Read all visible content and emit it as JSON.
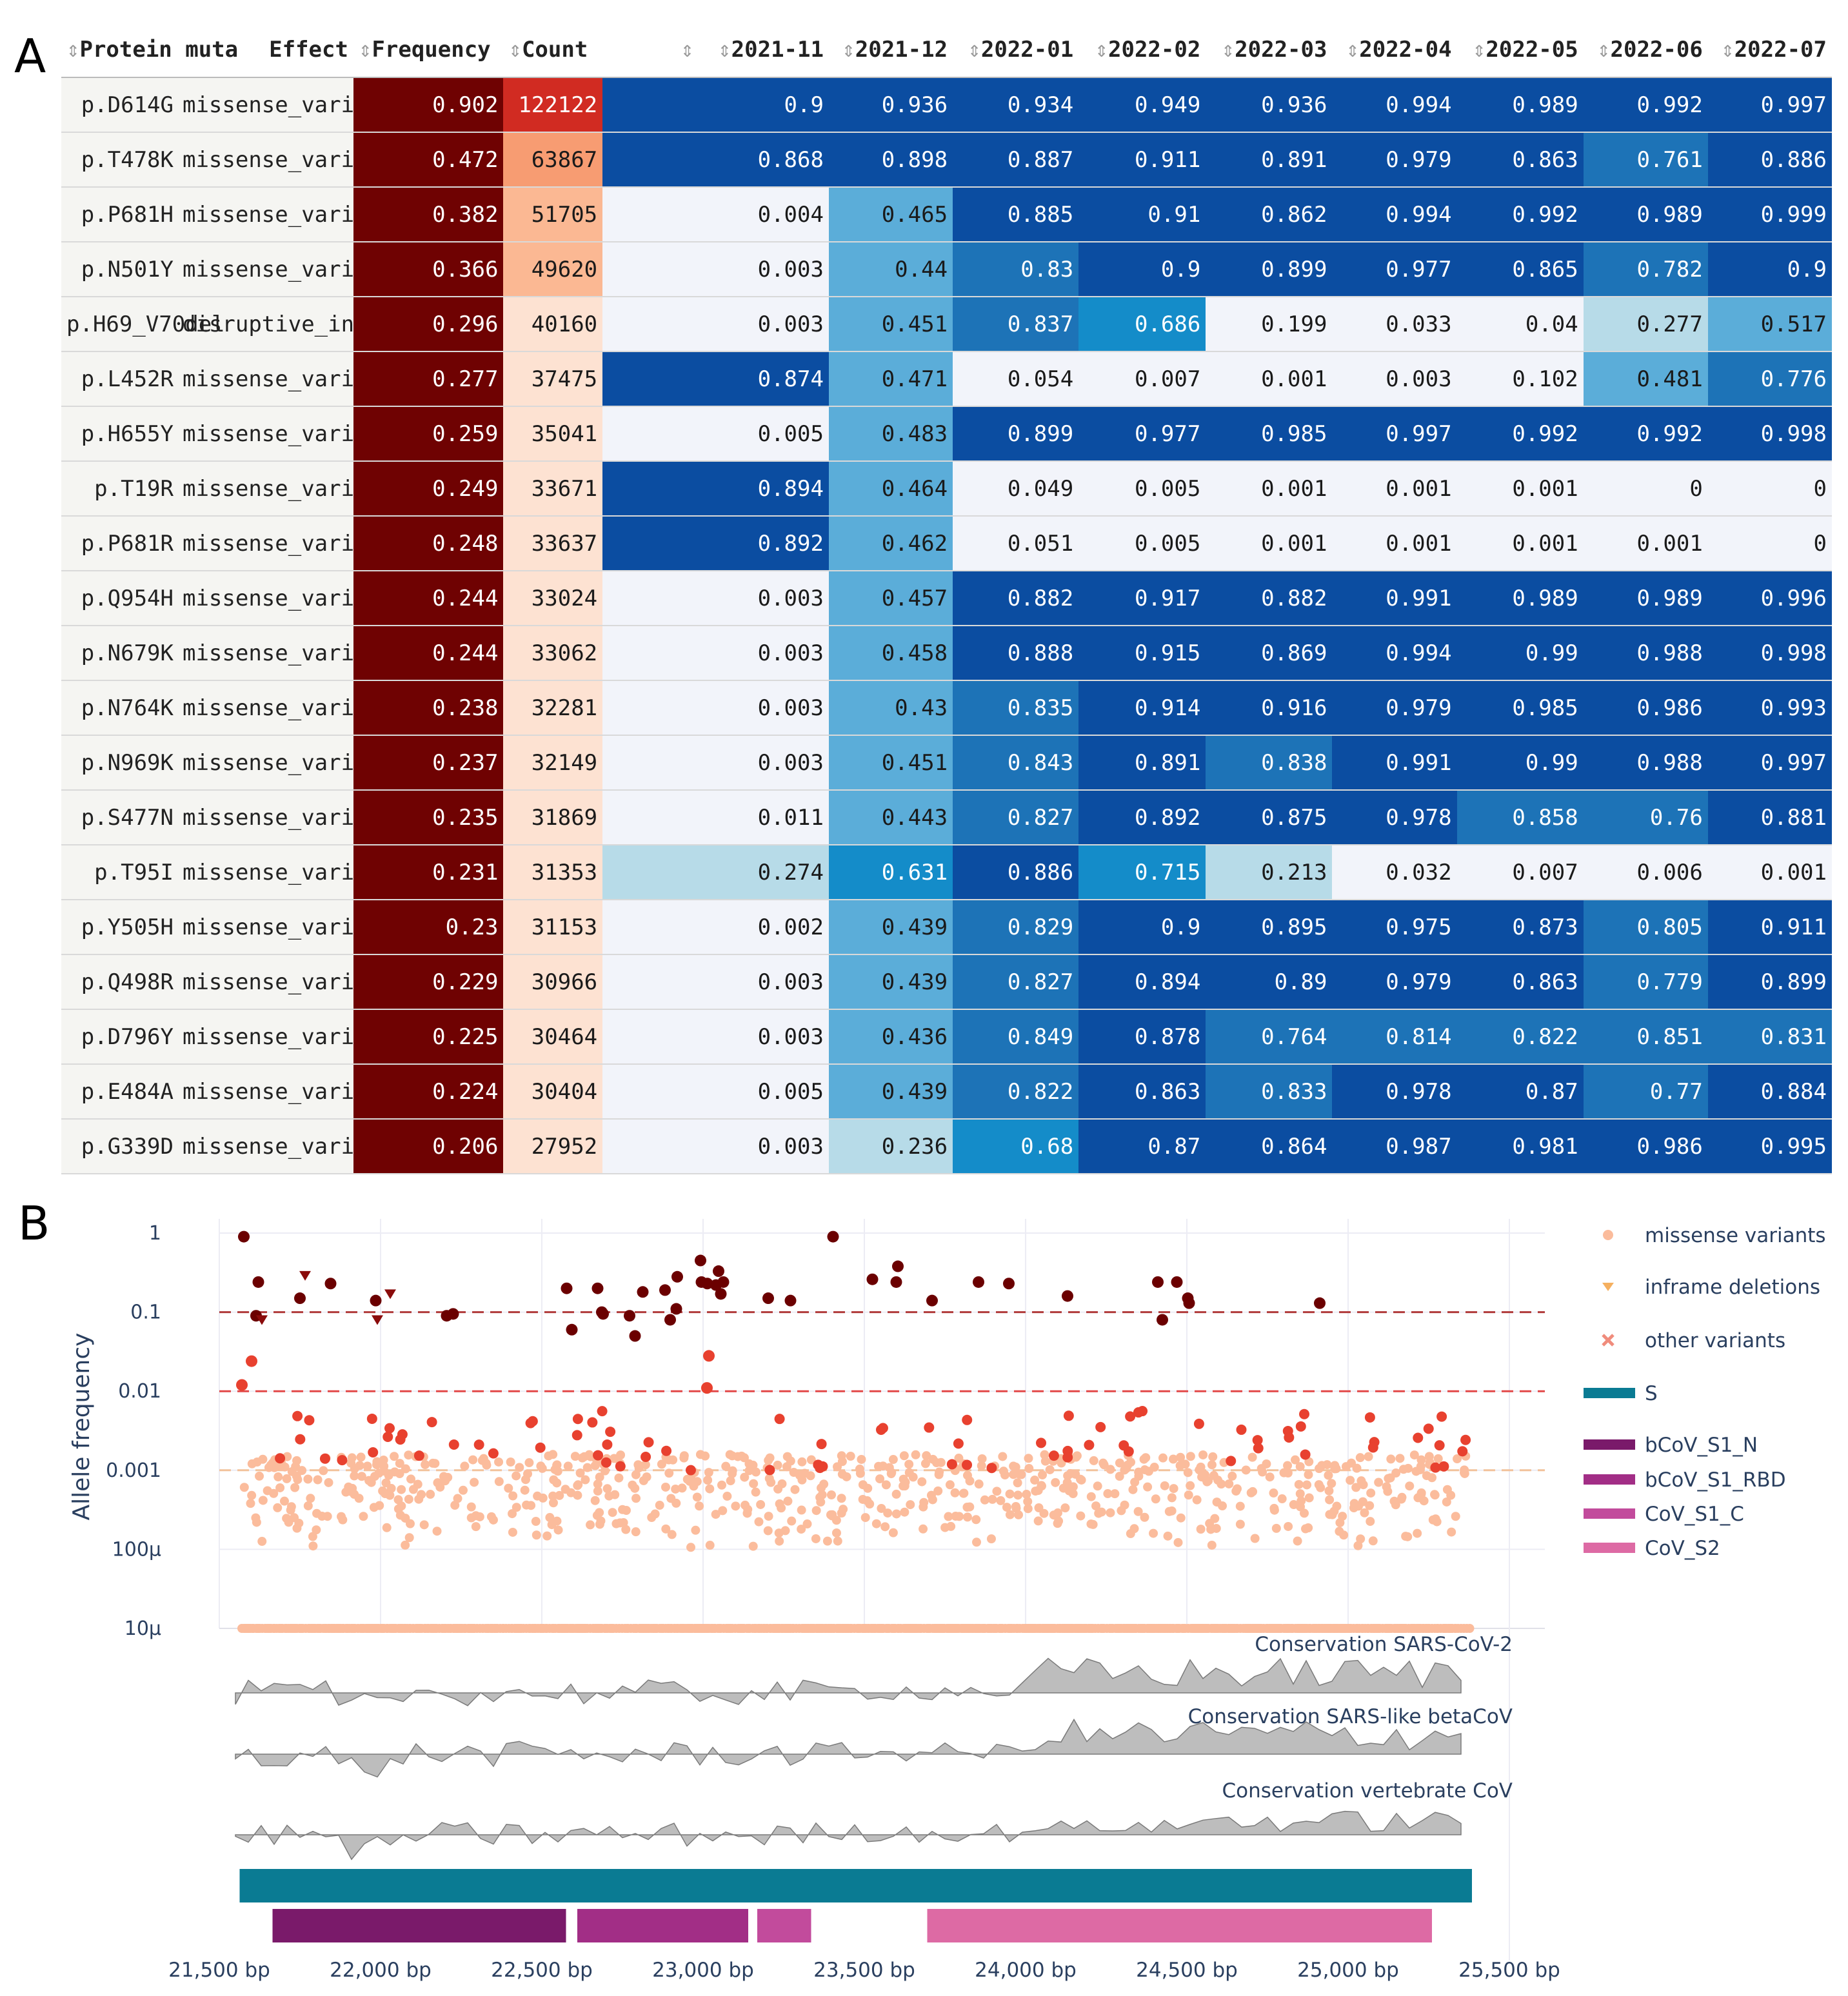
{
  "panel_a": {
    "letter": "A",
    "sort_icon": "⇕",
    "columns": [
      "Protein muta",
      "Effect",
      "Frequency",
      "Count",
      "",
      "2021-11",
      "2021-12",
      "2022-01",
      "2022-02",
      "2022-03",
      "2022-04",
      "2022-05",
      "2022-06",
      "2022-07"
    ],
    "rows": [
      {
        "mutation": "p.D614G",
        "effect": "missense_vari",
        "frequency": "0.902",
        "count": "122122",
        "months": [
          "0.9",
          "0.936",
          "0.934",
          "0.949",
          "0.936",
          "0.994",
          "0.989",
          "0.992",
          "0.997"
        ]
      },
      {
        "mutation": "p.T478K",
        "effect": "missense_vari",
        "frequency": "0.472",
        "count": "63867",
        "months": [
          "0.868",
          "0.898",
          "0.887",
          "0.911",
          "0.891",
          "0.979",
          "0.863",
          "0.761",
          "0.886"
        ]
      },
      {
        "mutation": "p.P681H",
        "effect": "missense_vari",
        "frequency": "0.382",
        "count": "51705",
        "months": [
          "0.004",
          "0.465",
          "0.885",
          "0.91",
          "0.862",
          "0.994",
          "0.992",
          "0.989",
          "0.999"
        ]
      },
      {
        "mutation": "p.N501Y",
        "effect": "missense_vari",
        "frequency": "0.366",
        "count": "49620",
        "months": [
          "0.003",
          "0.44",
          "0.83",
          "0.9",
          "0.899",
          "0.977",
          "0.865",
          "0.782",
          "0.9"
        ]
      },
      {
        "mutation": "p.H69_V70del",
        "effect": "disruptive_in",
        "frequency": "0.296",
        "count": "40160",
        "months": [
          "0.003",
          "0.451",
          "0.837",
          "0.686",
          "0.199",
          "0.033",
          "0.04",
          "0.277",
          "0.517"
        ]
      },
      {
        "mutation": "p.L452R",
        "effect": "missense_vari",
        "frequency": "0.277",
        "count": "37475",
        "months": [
          "0.874",
          "0.471",
          "0.054",
          "0.007",
          "0.001",
          "0.003",
          "0.102",
          "0.481",
          "0.776"
        ]
      },
      {
        "mutation": "p.H655Y",
        "effect": "missense_vari",
        "frequency": "0.259",
        "count": "35041",
        "months": [
          "0.005",
          "0.483",
          "0.899",
          "0.977",
          "0.985",
          "0.997",
          "0.992",
          "0.992",
          "0.998"
        ]
      },
      {
        "mutation": "p.T19R",
        "effect": "missense_vari",
        "frequency": "0.249",
        "count": "33671",
        "months": [
          "0.894",
          "0.464",
          "0.049",
          "0.005",
          "0.001",
          "0.001",
          "0.001",
          "0",
          "0"
        ]
      },
      {
        "mutation": "p.P681R",
        "effect": "missense_vari",
        "frequency": "0.248",
        "count": "33637",
        "months": [
          "0.892",
          "0.462",
          "0.051",
          "0.005",
          "0.001",
          "0.001",
          "0.001",
          "0.001",
          "0"
        ]
      },
      {
        "mutation": "p.Q954H",
        "effect": "missense_vari",
        "frequency": "0.244",
        "count": "33024",
        "months": [
          "0.003",
          "0.457",
          "0.882",
          "0.917",
          "0.882",
          "0.991",
          "0.989",
          "0.989",
          "0.996"
        ]
      },
      {
        "mutation": "p.N679K",
        "effect": "missense_vari",
        "frequency": "0.244",
        "count": "33062",
        "months": [
          "0.003",
          "0.458",
          "0.888",
          "0.915",
          "0.869",
          "0.994",
          "0.99",
          "0.988",
          "0.998"
        ]
      },
      {
        "mutation": "p.N764K",
        "effect": "missense_vari",
        "frequency": "0.238",
        "count": "32281",
        "months": [
          "0.003",
          "0.43",
          "0.835",
          "0.914",
          "0.916",
          "0.979",
          "0.985",
          "0.986",
          "0.993"
        ]
      },
      {
        "mutation": "p.N969K",
        "effect": "missense_vari",
        "frequency": "0.237",
        "count": "32149",
        "months": [
          "0.003",
          "0.451",
          "0.843",
          "0.891",
          "0.838",
          "0.991",
          "0.99",
          "0.988",
          "0.997"
        ]
      },
      {
        "mutation": "p.S477N",
        "effect": "missense_vari",
        "frequency": "0.235",
        "count": "31869",
        "months": [
          "0.011",
          "0.443",
          "0.827",
          "0.892",
          "0.875",
          "0.978",
          "0.858",
          "0.76",
          "0.881"
        ]
      },
      {
        "mutation": "p.T95I",
        "effect": "missense_vari",
        "frequency": "0.231",
        "count": "31353",
        "months": [
          "0.274",
          "0.631",
          "0.886",
          "0.715",
          "0.213",
          "0.032",
          "0.007",
          "0.006",
          "0.001"
        ]
      },
      {
        "mutation": "p.Y505H",
        "effect": "missense_vari",
        "frequency": "0.23",
        "count": "31153",
        "months": [
          "0.002",
          "0.439",
          "0.829",
          "0.9",
          "0.895",
          "0.975",
          "0.873",
          "0.805",
          "0.911"
        ]
      },
      {
        "mutation": "p.Q498R",
        "effect": "missense_vari",
        "frequency": "0.229",
        "count": "30966",
        "months": [
          "0.003",
          "0.439",
          "0.827",
          "0.894",
          "0.89",
          "0.979",
          "0.863",
          "0.779",
          "0.899"
        ]
      },
      {
        "mutation": "p.D796Y",
        "effect": "missense_vari",
        "frequency": "0.225",
        "count": "30464",
        "months": [
          "0.003",
          "0.436",
          "0.849",
          "0.878",
          "0.764",
          "0.814",
          "0.822",
          "0.851",
          "0.831"
        ]
      },
      {
        "mutation": "p.E484A",
        "effect": "missense_vari",
        "frequency": "0.224",
        "count": "30404",
        "months": [
          "0.005",
          "0.439",
          "0.822",
          "0.863",
          "0.833",
          "0.978",
          "0.87",
          "0.77",
          "0.884"
        ]
      },
      {
        "mutation": "p.G339D",
        "effect": "missense_vari",
        "frequency": "0.206",
        "count": "27952",
        "months": [
          "0.003",
          "0.236",
          "0.68",
          "0.87",
          "0.864",
          "0.987",
          "0.981",
          "0.986",
          "0.995"
        ]
      }
    ]
  },
  "panel_b": {
    "letter": "B",
    "colors": {
      "missense": "#fbbc9c",
      "inframe": "#f5b060",
      "other": "#f08c7c",
      "gene": "#0a7b93",
      "dom1": "#7a1a6a",
      "dom2": "#a22e86",
      "dom3": "#c24b9c",
      "dom4": "#dd6aa4",
      "conservation": "#bdbdbd",
      "dark": "#6b0000",
      "mid": "#e8412f"
    },
    "chart_data": {
      "type": "scatter",
      "title": "",
      "xlabel": "",
      "ylabel": "Allele frequency",
      "x_range": [
        21500,
        25500
      ],
      "y_scale": "log",
      "y_range": [
        1e-05,
        1
      ],
      "y_tick_values": [
        1,
        0.1,
        0.01,
        0.001,
        0.0001,
        1e-05
      ],
      "y_tick_labels": [
        "1",
        "0.1",
        "0.01",
        "0.001",
        "100μ",
        "10μ"
      ],
      "x_tick_values": [
        21500,
        22000,
        22500,
        23000,
        23500,
        24000,
        24500,
        25000,
        25500
      ],
      "x_tick_labels": [
        "21,500 bp",
        "22,000 bp",
        "22,500 bp",
        "23,000 bp",
        "23,500 bp",
        "24,000 bp",
        "24,500 bp",
        "25,000 bp",
        "25,500 bp"
      ],
      "threshold_lines": [
        0.1,
        0.01,
        0.001
      ],
      "legend": [
        "missense variants",
        "inframe deletions",
        "other variants",
        "S",
        "bCoV_S1_N",
        "bCoV_S1_RBD",
        "CoV_S1_C",
        "CoV_S2"
      ],
      "legend_position": "right",
      "high_frequency_points": [
        {
          "x": 21576,
          "y": 0.9
        },
        {
          "x": 21621,
          "y": 0.24
        },
        {
          "x": 21614,
          "y": 0.09
        },
        {
          "x": 21750,
          "y": 0.15
        },
        {
          "x": 21845,
          "y": 0.23
        },
        {
          "x": 21985,
          "y": 0.14
        },
        {
          "x": 22205,
          "y": 0.09
        },
        {
          "x": 22225,
          "y": 0.095
        },
        {
          "x": 22577,
          "y": 0.2
        },
        {
          "x": 22593,
          "y": 0.06
        },
        {
          "x": 22673,
          "y": 0.2
        },
        {
          "x": 22686,
          "y": 0.1
        },
        {
          "x": 22690,
          "y": 0.095
        },
        {
          "x": 22772,
          "y": 0.09
        },
        {
          "x": 22789,
          "y": 0.05
        },
        {
          "x": 22813,
          "y": 0.18
        },
        {
          "x": 22882,
          "y": 0.19
        },
        {
          "x": 22898,
          "y": 0.08
        },
        {
          "x": 22917,
          "y": 0.11
        },
        {
          "x": 22920,
          "y": 0.28
        },
        {
          "x": 22992,
          "y": 0.45
        },
        {
          "x": 22995,
          "y": 0.24
        },
        {
          "x": 23013,
          "y": 0.23
        },
        {
          "x": 23040,
          "y": 0.22
        },
        {
          "x": 23048,
          "y": 0.33
        },
        {
          "x": 23055,
          "y": 0.17
        },
        {
          "x": 23063,
          "y": 0.24
        },
        {
          "x": 23202,
          "y": 0.15
        },
        {
          "x": 23271,
          "y": 0.14
        },
        {
          "x": 23403,
          "y": 0.9
        },
        {
          "x": 23525,
          "y": 0.26
        },
        {
          "x": 23599,
          "y": 0.24
        },
        {
          "x": 23604,
          "y": 0.38
        },
        {
          "x": 23710,
          "y": 0.14
        },
        {
          "x": 23854,
          "y": 0.24
        },
        {
          "x": 23948,
          "y": 0.23
        },
        {
          "x": 24130,
          "y": 0.16
        },
        {
          "x": 24410,
          "y": 0.24
        },
        {
          "x": 24424,
          "y": 0.08
        },
        {
          "x": 24469,
          "y": 0.24
        },
        {
          "x": 24503,
          "y": 0.15
        },
        {
          "x": 24507,
          "y": 0.13
        },
        {
          "x": 24912,
          "y": 0.13
        },
        {
          "x": 21570,
          "y": 0.012
        },
        {
          "x": 21600,
          "y": 0.024
        },
        {
          "x": 23012,
          "y": 0.011
        },
        {
          "x": 23018,
          "y": 0.028
        }
      ],
      "inframe_deletions": [
        {
          "x": 21632,
          "y": 0.08
        },
        {
          "x": 21766,
          "y": 0.29
        },
        {
          "x": 21990,
          "y": 0.08
        },
        {
          "x": 22030,
          "y": 0.17
        }
      ],
      "conservation_tracks": [
        {
          "label": "Conservation SARS-CoV-2"
        },
        {
          "label": "Conservation SARS-like betaCoV"
        },
        {
          "label": "Conservation vertebrate CoV"
        }
      ],
      "annotations": [
        {
          "label": "S",
          "start": 21563,
          "end": 25384
        },
        {
          "label": "bCoV_S1_N",
          "start": 21665,
          "end": 22575
        },
        {
          "label": "bCoV_S1_RBD",
          "start": 22610,
          "end": 23140
        },
        {
          "label": "CoV_S1_C",
          "start": 23168,
          "end": 23335
        },
        {
          "label": "CoV_S2",
          "start": 23695,
          "end": 25260
        }
      ]
    }
  }
}
